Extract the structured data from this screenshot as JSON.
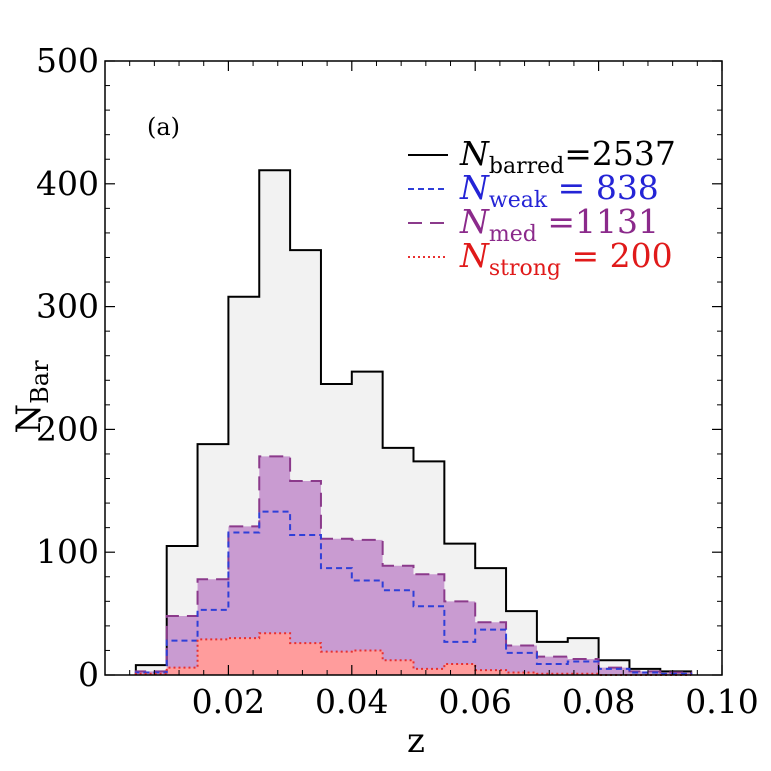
{
  "chart_data": {
    "type": "histogram",
    "panel_label": "(a)",
    "xlabel": "z",
    "ylabel_main": "N",
    "ylabel_sub": "Bar",
    "xlim": [
      0.0,
      0.1
    ],
    "ylim": [
      0,
      500
    ],
    "x_ticks": [
      0.02,
      0.04,
      0.06,
      0.08,
      0.1
    ],
    "x_tick_labels": [
      "0.02",
      "0.04",
      "0.06",
      "0.08",
      "0.10"
    ],
    "y_ticks": [
      0,
      100,
      200,
      300,
      400,
      500
    ],
    "y_tick_labels": [
      "0",
      "100",
      "200",
      "300",
      "400",
      "500"
    ],
    "bin_edges": [
      0.005,
      0.01,
      0.015,
      0.02,
      0.025,
      0.03,
      0.035,
      0.04,
      0.045,
      0.05,
      0.055,
      0.06,
      0.065,
      0.07,
      0.075,
      0.08,
      0.085,
      0.09,
      0.095
    ],
    "series": [
      {
        "name": "barred",
        "legend_main": "N",
        "legend_sub": "barred",
        "legend_value": "=2537",
        "stroke": "#000000",
        "fill": "#f2f2f2",
        "dash": "solid",
        "text_color": "#000000",
        "values": [
          8,
          105,
          188,
          308,
          411,
          346,
          237,
          247,
          185,
          174,
          107,
          87,
          52,
          27,
          30,
          12,
          5,
          3
        ]
      },
      {
        "name": "med",
        "legend_main": "N",
        "legend_sub": "med",
        "legend_value": " =1131",
        "stroke": "#8b3a8b",
        "fill": "#c99bd1",
        "dash": "long",
        "text_color": "#8b2a8b",
        "values": [
          3,
          48,
          78,
          121,
          178,
          158,
          111,
          110,
          89,
          82,
          60,
          43,
          24,
          15,
          13,
          6,
          3,
          2
        ]
      },
      {
        "name": "weak",
        "legend_main": "N",
        "legend_sub": "weak",
        "legend_value": " = 838",
        "stroke": "#2f3fd8",
        "fill": "none",
        "dash": "short",
        "text_color": "#2424d6",
        "values": [
          2,
          28,
          53,
          116,
          133,
          114,
          87,
          77,
          69,
          56,
          27,
          37,
          18,
          9,
          11,
          5,
          2,
          1
        ]
      },
      {
        "name": "strong",
        "legend_main": "N",
        "legend_sub": "strong",
        "legend_value": " = 200",
        "stroke": "#e83030",
        "fill": "#ff9c9c",
        "dash": "dotted",
        "text_color": "#e01a1a",
        "values": [
          1,
          6,
          29,
          30,
          34,
          26,
          19,
          20,
          12,
          5,
          9,
          4,
          2,
          1,
          1,
          0,
          0,
          0
        ]
      }
    ],
    "legend_order": [
      "barred",
      "weak",
      "med",
      "strong"
    ]
  }
}
